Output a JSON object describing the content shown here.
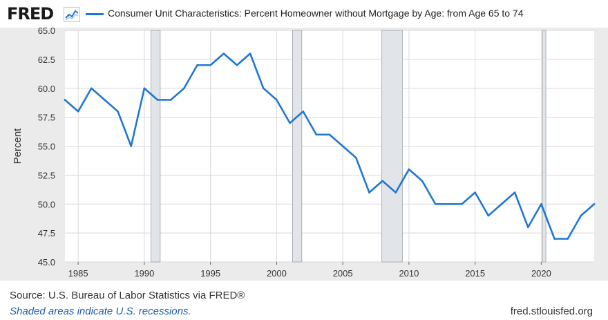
{
  "header": {
    "logo_text": "FRED",
    "logo_icon": "fred-graph-icon",
    "series_label": "Consumer Unit Characteristics: Percent Homeowner without Mortgage by Age: from Age 65 to 74",
    "series_color": "#1f77d4"
  },
  "footer": {
    "source": "Source: U.S. Bureau of Labor Statistics via FRED®",
    "recession_note": "Shaded areas indicate U.S. recessions.",
    "url": "fred.stlouisfed.org"
  },
  "colors": {
    "line": "#1f77d4",
    "recession_fill": "#e1e4e8",
    "recession_edge": "#9aa0a6",
    "grid": "#d8d8d8",
    "plot_background": "#ffffff",
    "outer_background": "#ebebeb"
  },
  "chart_data": {
    "type": "line",
    "title": "",
    "xlabel": "",
    "ylabel": "Percent",
    "xlim": [
      1984,
      2024
    ],
    "ylim": [
      45.0,
      65.0
    ],
    "grid": true,
    "legend": "top-left",
    "y_ticks": [
      "45.0",
      "47.5",
      "50.0",
      "52.5",
      "55.0",
      "57.5",
      "60.0",
      "62.5",
      "65.0"
    ],
    "x_ticks": [
      "1985",
      "1990",
      "1995",
      "2000",
      "2005",
      "2010",
      "2015",
      "2020"
    ],
    "recessions": [
      [
        1990.5,
        1991.2
      ],
      [
        2001.2,
        2001.9
      ],
      [
        2007.95,
        2009.5
      ],
      [
        2020.1,
        2020.35
      ]
    ],
    "series": [
      {
        "name": "Consumer Unit Characteristics: Percent Homeowner without Mortgage by Age: from Age 65 to 74",
        "x": [
          1984,
          1985,
          1986,
          1987,
          1988,
          1989,
          1990,
          1991,
          1992,
          1993,
          1994,
          1995,
          1996,
          1997,
          1998,
          1999,
          2000,
          2001,
          2002,
          2003,
          2004,
          2005,
          2006,
          2007,
          2008,
          2009,
          2010,
          2011,
          2012,
          2013,
          2014,
          2015,
          2016,
          2017,
          2018,
          2019,
          2020,
          2021,
          2022,
          2023,
          2024
        ],
        "values": [
          59,
          58,
          60,
          59,
          58,
          55,
          60,
          59,
          59,
          60,
          62,
          62,
          63,
          62,
          63,
          60,
          59,
          57,
          58,
          56,
          56,
          55,
          54,
          51,
          52,
          51,
          53,
          52,
          50,
          50,
          50,
          51,
          49,
          50,
          51,
          48,
          50,
          47,
          47,
          49,
          50
        ]
      }
    ]
  }
}
